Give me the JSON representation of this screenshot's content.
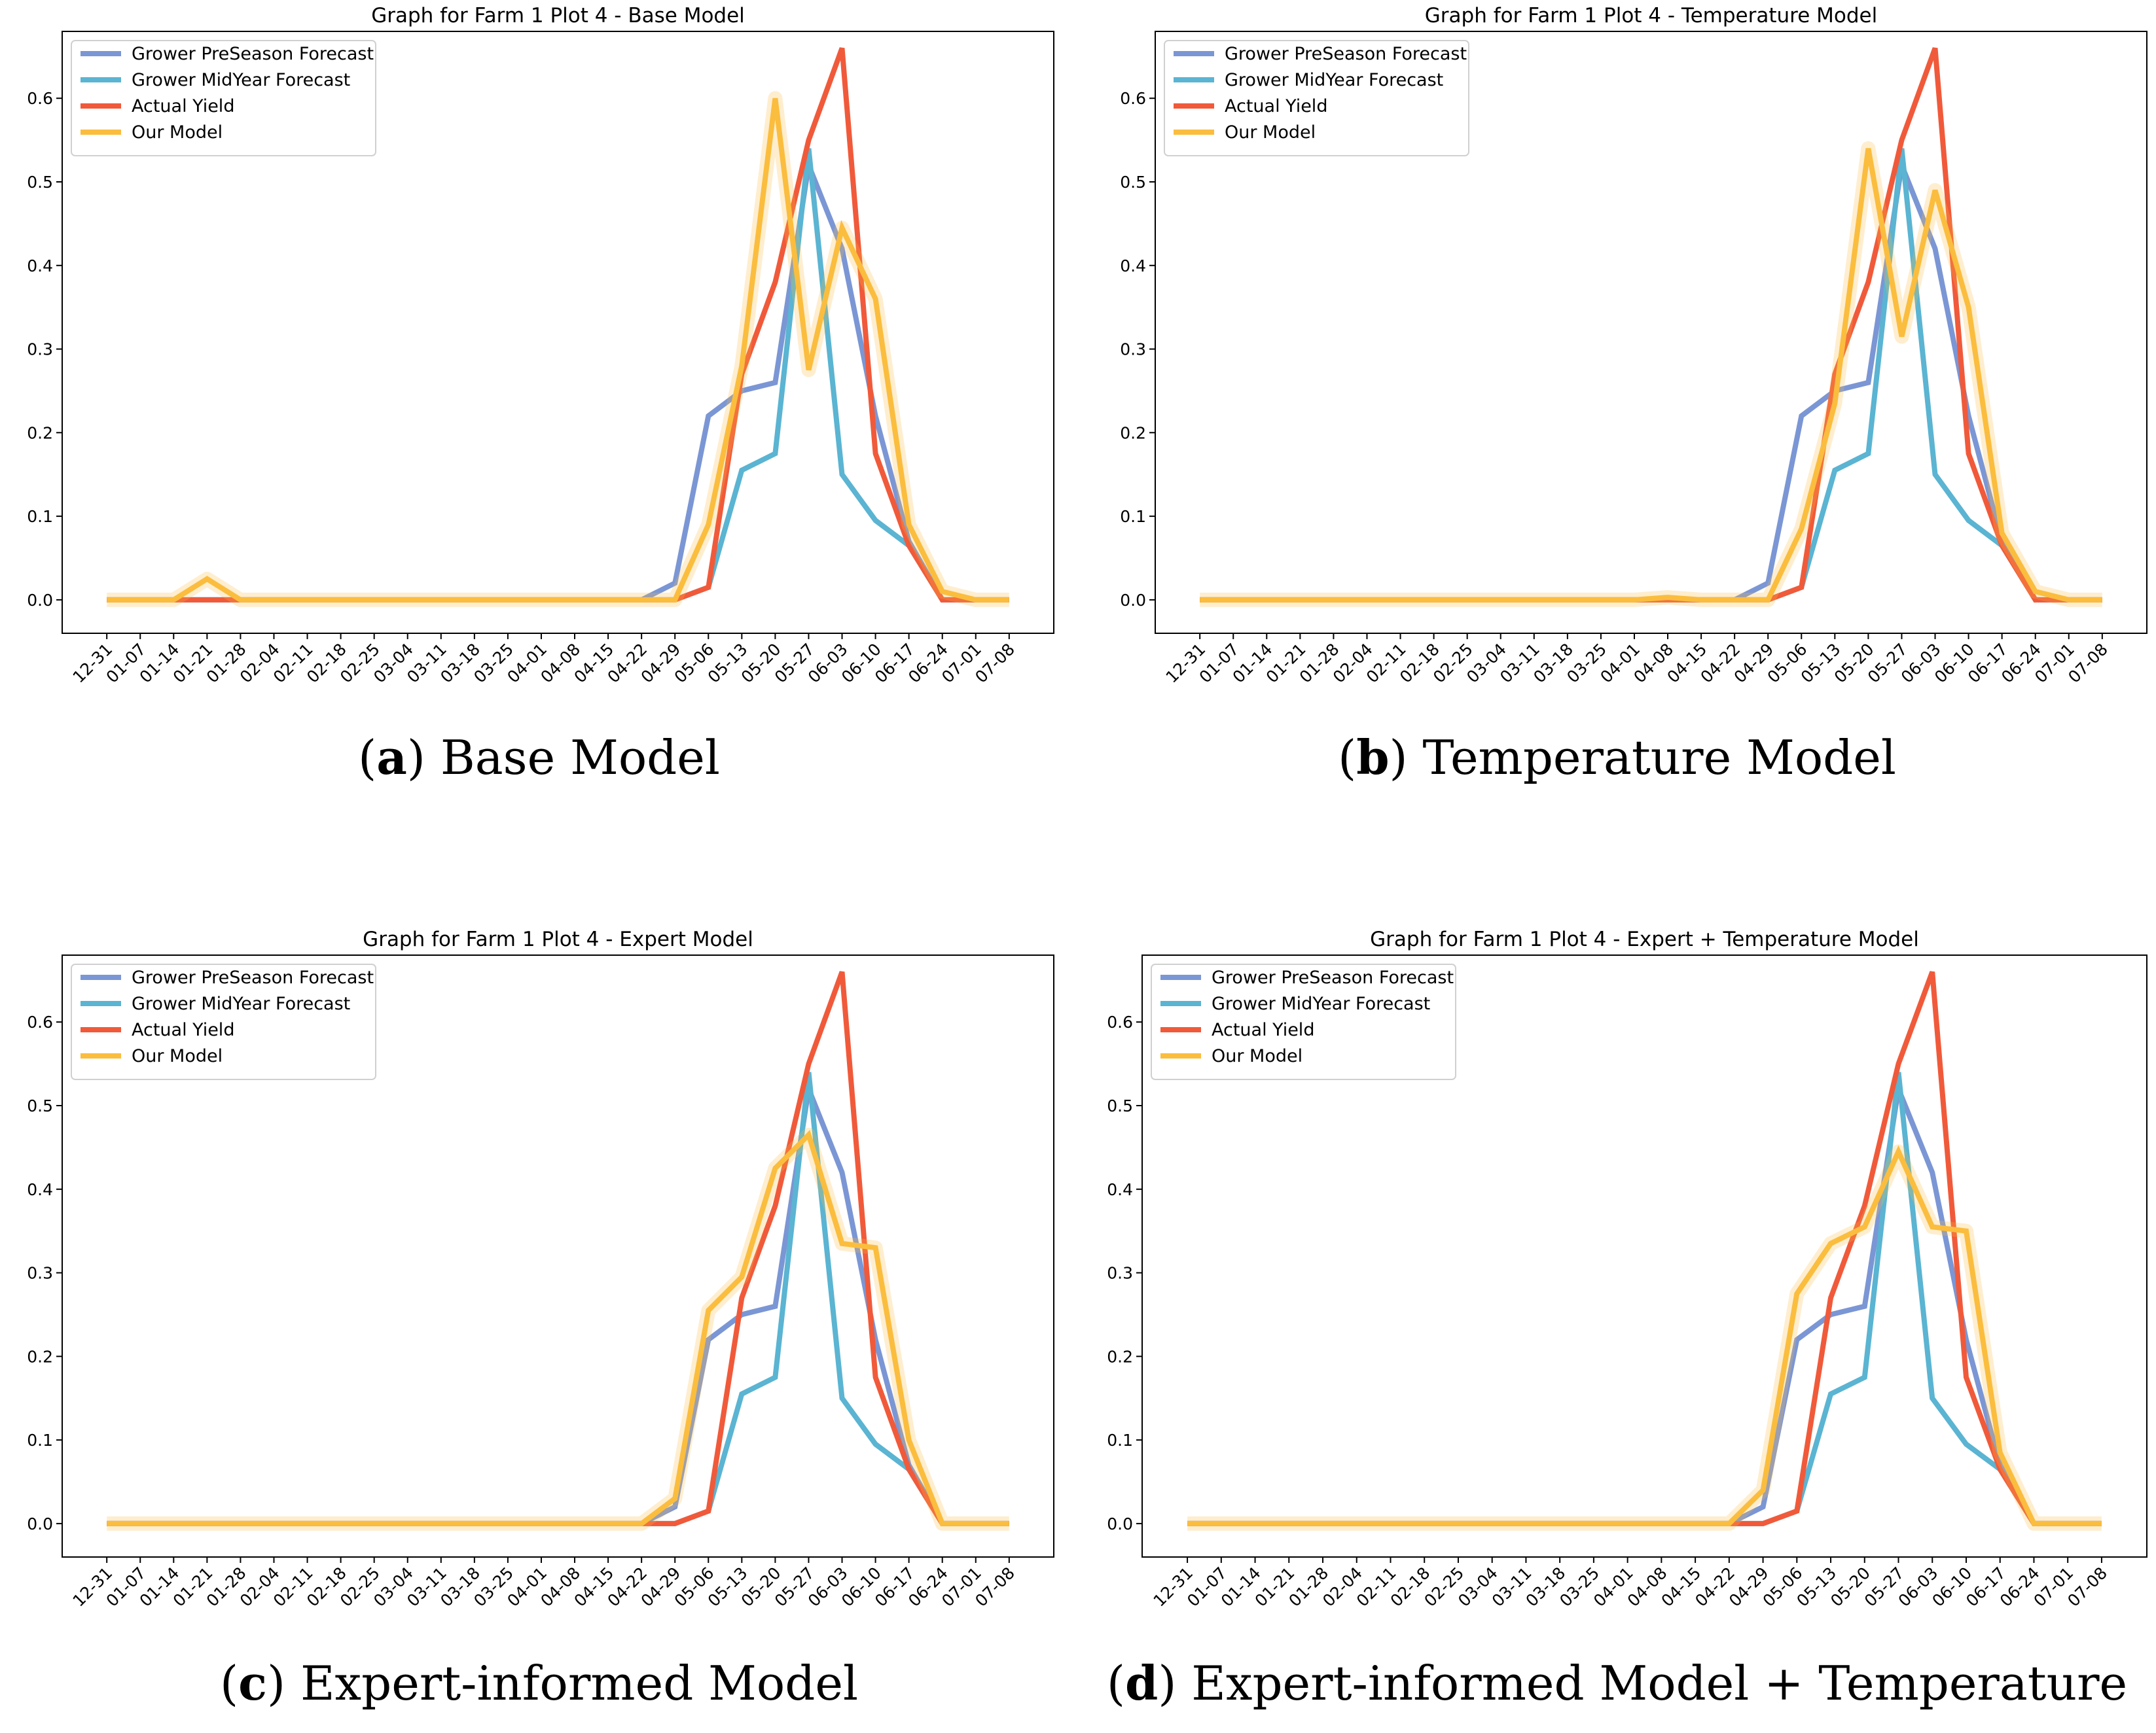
{
  "chart_data": [
    {
      "type": "line",
      "title": "Graph for Farm 1 Plot 4 - Base Model",
      "caption_letter": "a",
      "caption_text": "Base Model",
      "ylim": [
        -0.04,
        0.68
      ],
      "yticks": [
        0.0,
        0.1,
        0.2,
        0.3,
        0.4,
        0.5,
        0.6
      ],
      "categories": [
        "12-31",
        "01-07",
        "01-14",
        "01-21",
        "01-28",
        "02-04",
        "02-11",
        "02-18",
        "02-25",
        "03-04",
        "03-11",
        "03-18",
        "03-25",
        "04-01",
        "04-08",
        "04-15",
        "04-22",
        "04-29",
        "05-06",
        "05-13",
        "05-20",
        "05-27",
        "06-03",
        "06-10",
        "06-17",
        "06-24",
        "07-01",
        "07-08"
      ],
      "series": [
        {
          "name": "Grower PreSeason Forecast",
          "color": "#7b96d4",
          "values": [
            0,
            0,
            0,
            0,
            0,
            0,
            0,
            0,
            0,
            0,
            0,
            0,
            0,
            0,
            0,
            0,
            0,
            0.02,
            0.22,
            0.25,
            0.26,
            0.52,
            0.42,
            0.22,
            0.07,
            0,
            0,
            0
          ]
        },
        {
          "name": "Grower MidYear Forecast",
          "color": "#5ab4d2",
          "values": [
            0,
            0,
            0,
            0,
            0,
            0,
            0,
            0,
            0,
            0,
            0,
            0,
            0,
            0,
            0,
            0,
            0,
            0,
            0.015,
            0.155,
            0.175,
            0.54,
            0.15,
            0.095,
            0.065,
            0,
            0,
            0
          ]
        },
        {
          "name": "Actual Yield",
          "color": "#f05a3a",
          "values": [
            0,
            0,
            0,
            0,
            0,
            0,
            0,
            0,
            0,
            0,
            0,
            0,
            0,
            0,
            0,
            0,
            0,
            0,
            0.015,
            0.27,
            0.38,
            0.55,
            0.66,
            0.175,
            0.065,
            0,
            0,
            0
          ]
        },
        {
          "name": "Our Model",
          "color": "#fbbd3e",
          "values": [
            0,
            0,
            0,
            0.025,
            0,
            0,
            0,
            0,
            0,
            0,
            0,
            0,
            0,
            0,
            0,
            0,
            0,
            0,
            0.09,
            0.28,
            0.6,
            0.275,
            0.445,
            0.36,
            0.09,
            0.01,
            0,
            0
          ]
        }
      ]
    },
    {
      "type": "line",
      "title": "Graph for Farm 1 Plot 4 - Temperature Model",
      "caption_letter": "b",
      "caption_text": "Temperature Model",
      "ylim": [
        -0.04,
        0.68
      ],
      "yticks": [
        0.0,
        0.1,
        0.2,
        0.3,
        0.4,
        0.5,
        0.6
      ],
      "categories": [
        "12-31",
        "01-07",
        "01-14",
        "01-21",
        "01-28",
        "02-04",
        "02-11",
        "02-18",
        "02-25",
        "03-04",
        "03-11",
        "03-18",
        "03-25",
        "04-01",
        "04-08",
        "04-15",
        "04-22",
        "04-29",
        "05-06",
        "05-13",
        "05-20",
        "05-27",
        "06-03",
        "06-10",
        "06-17",
        "06-24",
        "07-01",
        "07-08"
      ],
      "series": [
        {
          "name": "Grower PreSeason Forecast",
          "color": "#7b96d4",
          "values": [
            0,
            0,
            0,
            0,
            0,
            0,
            0,
            0,
            0,
            0,
            0,
            0,
            0,
            0,
            0,
            0,
            0,
            0.02,
            0.22,
            0.25,
            0.26,
            0.52,
            0.42,
            0.22,
            0.07,
            0,
            0,
            0
          ]
        },
        {
          "name": "Grower MidYear Forecast",
          "color": "#5ab4d2",
          "values": [
            0,
            0,
            0,
            0,
            0,
            0,
            0,
            0,
            0,
            0,
            0,
            0,
            0,
            0,
            0,
            0,
            0,
            0,
            0.015,
            0.155,
            0.175,
            0.54,
            0.15,
            0.095,
            0.065,
            0,
            0,
            0
          ]
        },
        {
          "name": "Actual Yield",
          "color": "#f05a3a",
          "values": [
            0,
            0,
            0,
            0,
            0,
            0,
            0,
            0,
            0,
            0,
            0,
            0,
            0,
            0,
            0,
            0,
            0,
            0,
            0.015,
            0.27,
            0.38,
            0.55,
            0.66,
            0.175,
            0.065,
            0,
            0,
            0
          ]
        },
        {
          "name": "Our Model",
          "color": "#fbbd3e",
          "values": [
            0,
            0,
            0,
            0,
            0,
            0,
            0,
            0,
            0,
            0,
            0,
            0,
            0,
            0,
            0.003,
            0,
            0,
            0,
            0.085,
            0.235,
            0.54,
            0.315,
            0.49,
            0.35,
            0.08,
            0.01,
            0,
            0
          ]
        }
      ]
    },
    {
      "type": "line",
      "title": "Graph for Farm 1 Plot 4 - Expert Model",
      "caption_letter": "c",
      "caption_text": "Expert-informed Model",
      "ylim": [
        -0.04,
        0.68
      ],
      "yticks": [
        0.0,
        0.1,
        0.2,
        0.3,
        0.4,
        0.5,
        0.6
      ],
      "categories": [
        "12-31",
        "01-07",
        "01-14",
        "01-21",
        "01-28",
        "02-04",
        "02-11",
        "02-18",
        "02-25",
        "03-04",
        "03-11",
        "03-18",
        "03-25",
        "04-01",
        "04-08",
        "04-15",
        "04-22",
        "04-29",
        "05-06",
        "05-13",
        "05-20",
        "05-27",
        "06-03",
        "06-10",
        "06-17",
        "06-24",
        "07-01",
        "07-08"
      ],
      "series": [
        {
          "name": "Grower PreSeason Forecast",
          "color": "#7b96d4",
          "values": [
            0,
            0,
            0,
            0,
            0,
            0,
            0,
            0,
            0,
            0,
            0,
            0,
            0,
            0,
            0,
            0,
            0,
            0.02,
            0.22,
            0.25,
            0.26,
            0.52,
            0.42,
            0.22,
            0.07,
            0,
            0,
            0
          ]
        },
        {
          "name": "Grower MidYear Forecast",
          "color": "#5ab4d2",
          "values": [
            0,
            0,
            0,
            0,
            0,
            0,
            0,
            0,
            0,
            0,
            0,
            0,
            0,
            0,
            0,
            0,
            0,
            0,
            0.015,
            0.155,
            0.175,
            0.54,
            0.15,
            0.095,
            0.065,
            0,
            0,
            0
          ]
        },
        {
          "name": "Actual Yield",
          "color": "#f05a3a",
          "values": [
            0,
            0,
            0,
            0,
            0,
            0,
            0,
            0,
            0,
            0,
            0,
            0,
            0,
            0,
            0,
            0,
            0,
            0,
            0.015,
            0.27,
            0.38,
            0.55,
            0.66,
            0.175,
            0.065,
            0,
            0,
            0
          ]
        },
        {
          "name": "Our Model",
          "color": "#fbbd3e",
          "values": [
            0,
            0,
            0,
            0,
            0,
            0,
            0,
            0,
            0,
            0,
            0,
            0,
            0,
            0,
            0,
            0,
            0,
            0.03,
            0.255,
            0.295,
            0.425,
            0.465,
            0.335,
            0.33,
            0.1,
            0,
            0,
            0
          ]
        }
      ]
    },
    {
      "type": "line",
      "title": "Graph for Farm 1 Plot 4 - Expert + Temperature Model",
      "caption_letter": "d",
      "caption_text": "Expert-informed Model + Temperature",
      "ylim": [
        -0.04,
        0.68
      ],
      "yticks": [
        0.0,
        0.1,
        0.2,
        0.3,
        0.4,
        0.5,
        0.6
      ],
      "categories": [
        "12-31",
        "01-07",
        "01-14",
        "01-21",
        "01-28",
        "02-04",
        "02-11",
        "02-18",
        "02-25",
        "03-04",
        "03-11",
        "03-18",
        "03-25",
        "04-01",
        "04-08",
        "04-15",
        "04-22",
        "04-29",
        "05-06",
        "05-13",
        "05-20",
        "05-27",
        "06-03",
        "06-10",
        "06-17",
        "06-24",
        "07-01",
        "07-08"
      ],
      "series": [
        {
          "name": "Grower PreSeason Forecast",
          "color": "#7b96d4",
          "values": [
            0,
            0,
            0,
            0,
            0,
            0,
            0,
            0,
            0,
            0,
            0,
            0,
            0,
            0,
            0,
            0,
            0,
            0.02,
            0.22,
            0.25,
            0.26,
            0.52,
            0.42,
            0.22,
            0.07,
            0,
            0,
            0
          ]
        },
        {
          "name": "Grower MidYear Forecast",
          "color": "#5ab4d2",
          "values": [
            0,
            0,
            0,
            0,
            0,
            0,
            0,
            0,
            0,
            0,
            0,
            0,
            0,
            0,
            0,
            0,
            0,
            0,
            0.015,
            0.155,
            0.175,
            0.54,
            0.15,
            0.095,
            0.065,
            0,
            0,
            0
          ]
        },
        {
          "name": "Actual Yield",
          "color": "#f05a3a",
          "values": [
            0,
            0,
            0,
            0,
            0,
            0,
            0,
            0,
            0,
            0,
            0,
            0,
            0,
            0,
            0,
            0,
            0,
            0,
            0.015,
            0.27,
            0.38,
            0.55,
            0.66,
            0.175,
            0.065,
            0,
            0,
            0
          ]
        },
        {
          "name": "Our Model",
          "color": "#fbbd3e",
          "values": [
            0,
            0,
            0,
            0,
            0,
            0,
            0,
            0,
            0,
            0,
            0,
            0,
            0,
            0,
            0,
            0,
            0,
            0.04,
            0.275,
            0.335,
            0.355,
            0.445,
            0.355,
            0.35,
            0.085,
            0,
            0,
            0
          ]
        }
      ]
    }
  ]
}
